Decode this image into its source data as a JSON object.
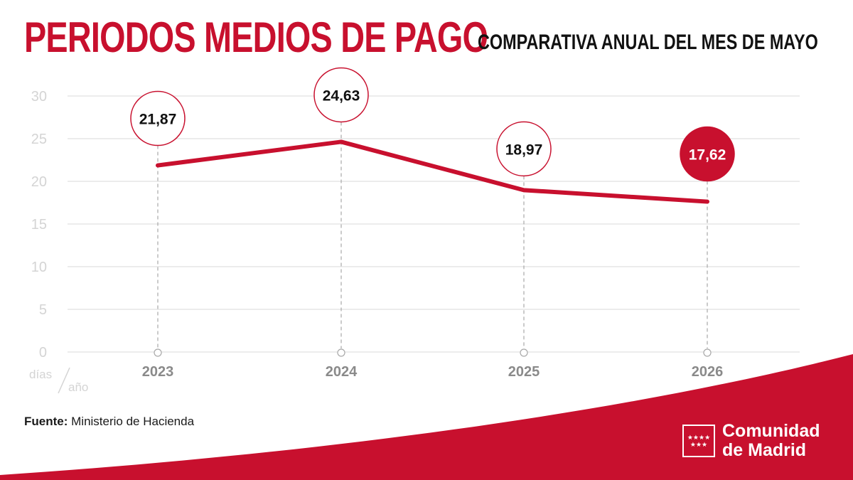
{
  "header": {
    "title": "PERIODOS MEDIOS DE PAGO",
    "subtitle": "COMPARATIVA ANUAL DEL MES DE MAYO"
  },
  "chart_data": {
    "type": "line",
    "categories": [
      "2023",
      "2024",
      "2025",
      "2026"
    ],
    "values": [
      21.87,
      24.63,
      18.97,
      17.62
    ],
    "data_labels": [
      "21,87",
      "24,63",
      "18,97",
      "17,62"
    ],
    "y_ticks": [
      0,
      5,
      10,
      15,
      20,
      25,
      30
    ],
    "ylim": [
      0,
      30
    ],
    "unit_top": "días",
    "unit_bottom": "año",
    "grid": true,
    "colors": {
      "line": "#c8102e",
      "grid": "#e6e6e6",
      "tick_label": "#d4d4d4",
      "category_label": "#8a8a8a",
      "highlight_fill": "#c8102e"
    }
  },
  "source": {
    "label": "Fuente:",
    "text": "Ministerio de Hacienda"
  },
  "logo": {
    "icon": "madrid-flag-stars-icon",
    "line1": "Comunidad",
    "line2": "de Madrid",
    "stars_row1": "★★★★",
    "stars_row2": "★★★",
    "brand_color": "#c8102e"
  }
}
